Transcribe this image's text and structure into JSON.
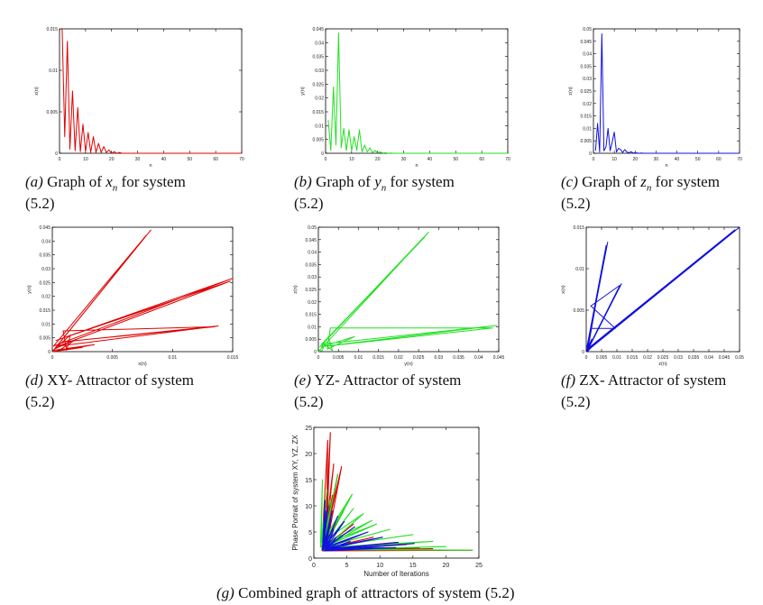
{
  "figures": [
    {
      "label": "(a)",
      "caption_line1": "Graph of xn for system",
      "caption_line2": "(5.2)",
      "chart_data": {
        "type": "line",
        "color": "#e00000",
        "xlabel": "n",
        "ylabel": "x(n)",
        "xlim": [
          0,
          70
        ],
        "ylim": [
          0,
          0.015
        ],
        "xticks": [
          0,
          10,
          20,
          30,
          40,
          50,
          60,
          70
        ],
        "xtick_labels": [
          "0",
          "10",
          "20",
          "30",
          "40",
          "50",
          "60",
          "70"
        ],
        "yticks": [
          0,
          0.005,
          0.01,
          0.015
        ],
        "ytick_labels": [
          "0",
          "0.005",
          "0.01",
          "0.015"
        ],
        "x": [
          1,
          2,
          3,
          4,
          5,
          6,
          7,
          8,
          9,
          10,
          11,
          12,
          13,
          14,
          15,
          16,
          17,
          18,
          19,
          20,
          21,
          22,
          23,
          24,
          25,
          26,
          27,
          28,
          29,
          30,
          70
        ],
        "y": [
          0.015,
          0.002,
          0.0135,
          0.0005,
          0.0075,
          0.0003,
          0.0055,
          0.0002,
          0.0035,
          0.0002,
          0.0025,
          0.0001,
          0.002,
          0.0001,
          0.0012,
          0.0001,
          0.0008,
          0.0001,
          0.0004,
          0,
          0.0002,
          0,
          0.0001,
          0,
          0,
          0,
          0,
          0,
          0,
          0,
          0
        ]
      }
    },
    {
      "label": "(b)",
      "caption_line1": "Graph of yn for system",
      "caption_line2": "(5.2)",
      "chart_data": {
        "type": "line",
        "color": "#22e022",
        "xlabel": "n",
        "ylabel": "y(n)",
        "xlim": [
          0,
          70
        ],
        "ylim": [
          0,
          0.045
        ],
        "xticks": [
          0,
          10,
          20,
          30,
          40,
          50,
          60,
          70
        ],
        "xtick_labels": [
          "0",
          "10",
          "20",
          "30",
          "40",
          "50",
          "60",
          "70"
        ],
        "yticks": [
          0,
          0.005,
          0.01,
          0.015,
          0.02,
          0.025,
          0.03,
          0.035,
          0.04,
          0.045
        ],
        "ytick_labels": [
          "0",
          "0.005",
          "0.01",
          "0.015",
          "0.02",
          "0.025",
          "0.03",
          "0.035",
          "0.04",
          "0.045"
        ],
        "x": [
          1,
          2,
          3,
          4,
          5,
          6,
          7,
          8,
          9,
          10,
          11,
          12,
          13,
          14,
          15,
          16,
          17,
          18,
          19,
          20,
          21,
          22,
          23,
          24,
          25,
          26,
          27,
          28,
          29,
          30,
          70
        ],
        "y": [
          0.012,
          0.001,
          0.024,
          0.003,
          0.0435,
          0.002,
          0.009,
          0.001,
          0.0085,
          0.001,
          0.006,
          0.001,
          0.0085,
          0.0005,
          0.003,
          0.0005,
          0.002,
          0.0002,
          0.001,
          0.0002,
          0.0005,
          0.0001,
          0.0002,
          0,
          0.0001,
          0,
          0,
          0,
          0,
          0,
          0
        ]
      }
    },
    {
      "label": "(c)",
      "caption_line1": "Graph of zn for system",
      "caption_line2": "(5.2)",
      "chart_data": {
        "type": "line",
        "color": "#1010e0",
        "xlabel": "n",
        "ylabel": "z(n)",
        "xlim": [
          0,
          70
        ],
        "ylim": [
          0,
          0.05
        ],
        "xticks": [
          0,
          10,
          20,
          30,
          40,
          50,
          60,
          70
        ],
        "xtick_labels": [
          "0",
          "10",
          "20",
          "30",
          "40",
          "50",
          "60",
          "70"
        ],
        "yticks": [
          0,
          0.005,
          0.01,
          0.015,
          0.02,
          0.025,
          0.03,
          0.035,
          0.04,
          0.045,
          0.05
        ],
        "ytick_labels": [
          "0",
          "0.005",
          "0.01",
          "0.015",
          "0.02",
          "0.025",
          "0.03",
          "0.035",
          "0.04",
          "0.045",
          "0.05"
        ],
        "x": [
          1,
          2,
          3,
          4,
          5,
          6,
          7,
          8,
          9,
          10,
          11,
          12,
          13,
          14,
          15,
          16,
          17,
          18,
          19,
          20,
          21,
          22,
          23,
          24,
          25,
          26,
          27,
          28,
          29,
          30,
          70
        ],
        "y": [
          0.001,
          0.012,
          0.0005,
          0.048,
          0.001,
          0.0025,
          0.01,
          0.001,
          0.0045,
          0.0085,
          0.0005,
          0.002,
          0.0015,
          0.0003,
          0.0015,
          0.0005,
          0.0002,
          0.0006,
          0.0001,
          0.0002,
          0.0001,
          0,
          0.0001,
          0,
          0,
          0,
          0,
          0,
          0,
          0,
          0
        ]
      }
    },
    {
      "label": "(d)",
      "caption_line1": "XY- Attractor of system",
      "caption_line2": "(5.2)",
      "chart_data": {
        "type": "line",
        "color": "#e00000",
        "xlabel": "x(n)",
        "ylabel": "y(n)",
        "xlim": [
          0,
          0.015
        ],
        "ylim": [
          0,
          0.045
        ],
        "xticks": [
          0,
          0.005,
          0.01,
          0.015
        ],
        "xtick_labels": [
          "0",
          "0.005",
          "0.01",
          "0.015"
        ],
        "yticks": [
          0,
          0.005,
          0.01,
          0.015,
          0.02,
          0.025,
          0.03,
          0.035,
          0.04,
          0.045
        ],
        "ytick_labels": [
          "0",
          "0.005",
          "0.01",
          "0.015",
          "0.02",
          "0.025",
          "0.03",
          "0.035",
          "0.04",
          "0.045"
        ],
        "x": [
          0,
          0.0082,
          0.0002,
          0.0078,
          0.0001,
          0.015,
          0.0003,
          0.0148,
          0.0005,
          0.0138,
          0.0008,
          0.0135,
          0.0009,
          0.0012,
          0.0015,
          0.0002,
          0.002,
          0.0005,
          0.0035,
          0.0001,
          0.0025,
          0
        ],
        "y": [
          0,
          0.044,
          0.001,
          0.042,
          0.002,
          0.0265,
          0.004,
          0.0255,
          0.002,
          0.0093,
          0.0035,
          0.009,
          0.0075,
          0.0005,
          0.006,
          0.001,
          0.0045,
          0.0003,
          0.0025,
          0.0005,
          0.0015,
          0
        ]
      }
    },
    {
      "label": "(e)",
      "caption_line1": "YZ- Attractor of system",
      "caption_line2": "(5.2)",
      "chart_data": {
        "type": "line",
        "color": "#22e022",
        "xlabel": "y(n)",
        "ylabel": "z(n)",
        "xlim": [
          0,
          0.045
        ],
        "ylim": [
          0,
          0.05
        ],
        "xticks": [
          0,
          0.005,
          0.01,
          0.015,
          0.02,
          0.025,
          0.03,
          0.035,
          0.04,
          0.045
        ],
        "xtick_labels": [
          "0",
          "0.005",
          "0.01",
          "0.015",
          "0.02",
          "0.025",
          "0.03",
          "0.035",
          "0.04",
          "0.045"
        ],
        "yticks": [
          0,
          0.005,
          0.01,
          0.015,
          0.02,
          0.025,
          0.03,
          0.035,
          0.04,
          0.045,
          0.05
        ],
        "ytick_labels": [
          "0",
          "0.005",
          "0.01",
          "0.015",
          "0.02",
          "0.025",
          "0.03",
          "0.035",
          "0.04",
          "0.045",
          "0.05"
        ],
        "x": [
          0,
          0.0275,
          0.0004,
          0.0265,
          0.0008,
          0.0445,
          0.0008,
          0.0435,
          0.003,
          0.0022,
          0.009,
          0.0008,
          0.0025,
          0.0035,
          0.0015,
          0.001,
          0
        ],
        "y": [
          0,
          0.048,
          0.002,
          0.046,
          0.003,
          0.0105,
          0.002,
          0.0095,
          0.0095,
          0.001,
          0.006,
          0.002,
          0.006,
          0.0005,
          0.003,
          0.0005,
          0
        ]
      }
    },
    {
      "label": "(f)",
      "caption_line1": "ZX- Attractor of system",
      "caption_line2": "(5.2)",
      "chart_data": {
        "type": "line",
        "color": "#1010e0",
        "xlabel": "z(n)",
        "ylabel": "x(n)",
        "xlim": [
          0,
          0.05
        ],
        "ylim": [
          0,
          0.015
        ],
        "xticks": [
          0,
          0.005,
          0.01,
          0.015,
          0.02,
          0.025,
          0.03,
          0.035,
          0.04,
          0.045,
          0.05
        ],
        "xtick_labels": [
          "0",
          "0.005",
          "0.01",
          "0.015",
          "0.02",
          "0.025",
          "0.03",
          "0.035",
          "0.04",
          "0.045",
          "0.05"
        ],
        "yticks": [
          0,
          0.005,
          0.01,
          0.015
        ],
        "ytick_labels": [
          "0",
          "0.005",
          "0.01",
          "0.015"
        ],
        "x": [
          0,
          0.05,
          0.0003,
          0.0485,
          0.0003,
          0.007,
          0.0002,
          0.0065,
          0.0005,
          0.0115,
          0.0005,
          0.011,
          0.0015,
          0.0095,
          0.0015,
          0.0005,
          0.003,
          0.0006,
          0.0018,
          0
        ],
        "y": [
          0,
          0.015,
          0.0002,
          0.0147,
          0.0003,
          0.0132,
          0.0005,
          0.0128,
          0.0002,
          0.0082,
          0.0003,
          0.008,
          0.0055,
          0.0028,
          0.0028,
          0.0002,
          0.001,
          0.0001,
          0.0015,
          0
        ]
      }
    },
    {
      "label": "(g)",
      "caption_line1": "Combined graph of attractors of system (5.2)",
      "chart_data": {
        "type": "line",
        "xlabel": "Number of Iterations",
        "ylabel": "Phase Portrait of system XY, YZ, ZX",
        "xlim": [
          0,
          25
        ],
        "ylim": [
          0,
          25
        ],
        "xticks": [
          0,
          5,
          10,
          15,
          20,
          25
        ],
        "xtick_labels": [
          "0",
          "5",
          "10",
          "15",
          "20",
          "25"
        ],
        "yticks": [
          0,
          5,
          10,
          15,
          20,
          25
        ],
        "ytick_labels": [
          "0",
          "5",
          "10",
          "15",
          "20",
          "25"
        ],
        "series": [
          {
            "color": "#e00000",
            "x": [
              1.2,
              2.1,
              1.9,
              2.5,
              1.7,
              3.0,
              1.8,
              3.6,
              1.6,
              4.2,
              2.2,
              2.8,
              1.5,
              4.5,
              1.3,
              6.0,
              1.4,
              9.0,
              1.2,
              12.5,
              1.3,
              14.0,
              1.3,
              16.0,
              2.0,
              1.6,
              18.0,
              1.2,
              24.0,
              1.3,
              2.4,
              1.8
            ],
            "y": [
              2.0,
              22.5,
              3.0,
              24.0,
              4.0,
              18.0,
              3.0,
              16.0,
              3.0,
              17.5,
              4.0,
              12.0,
              2.0,
              9.0,
              2.0,
              6.5,
              1.8,
              4.0,
              1.7,
              3.0,
              1.6,
              2.6,
              1.5,
              2.0,
              1.7,
              1.5,
              1.8,
              1.5,
              1.5,
              1.4,
              1.9,
              1.6
            ]
          },
          {
            "color": "#22e022",
            "x": [
              1.0,
              1.3,
              1.1,
              2.0,
              1.2,
              4.8,
              1.6,
              5.8,
              1.2,
              7.5,
              1.7,
              8.8,
              1.3,
              9.5,
              1.4,
              11.5,
              1.3,
              15.0,
              1.2,
              18.0,
              1.3,
              24.0,
              1.2,
              20.0,
              1.2,
              3.6,
              1.4,
              2.4,
              1.3,
              6.0,
              1.2
            ],
            "y": [
              2.0,
              15.0,
              3.0,
              13.0,
              2.5,
              9.8,
              2.0,
              12.2,
              3.0,
              8.5,
              2.0,
              7.2,
              2.5,
              6.5,
              2.0,
              5.5,
              2.0,
              4.5,
              2.0,
              3.2,
              1.8,
              1.5,
              1.6,
              2.2,
              1.6,
              16.0,
              2.0,
              11.0,
              1.8,
              9.5,
              1.5
            ]
          },
          {
            "color": "#1010e0",
            "x": [
              1.3,
              1.7,
              1.4,
              2.2,
              1.5,
              2.8,
              1.6,
              3.6,
              1.8,
              4.6,
              1.9,
              6.2,
              2.0,
              8.2,
              2.2,
              10.4,
              2.4,
              12.8,
              2.0,
              15.2,
              1.6,
              12.4,
              1.8,
              3.0,
              2.0,
              3.4,
              1.6,
              5.5,
              1.7,
              2.6,
              1.5,
              1.8,
              1.4
            ],
            "y": [
              1.5,
              11.0,
              2.0,
              10.0,
              2.5,
              9.0,
              2.0,
              8.0,
              2.5,
              7.0,
              2.0,
              6.0,
              2.2,
              5.0,
              2.0,
              4.0,
              1.8,
              3.0,
              1.6,
              2.8,
              1.4,
              2.0,
              1.8,
              5.5,
              1.6,
              4.0,
              1.4,
              3.2,
              1.5,
              7.5,
              1.6,
              9.0,
              1.5
            ]
          }
        ]
      }
    }
  ]
}
